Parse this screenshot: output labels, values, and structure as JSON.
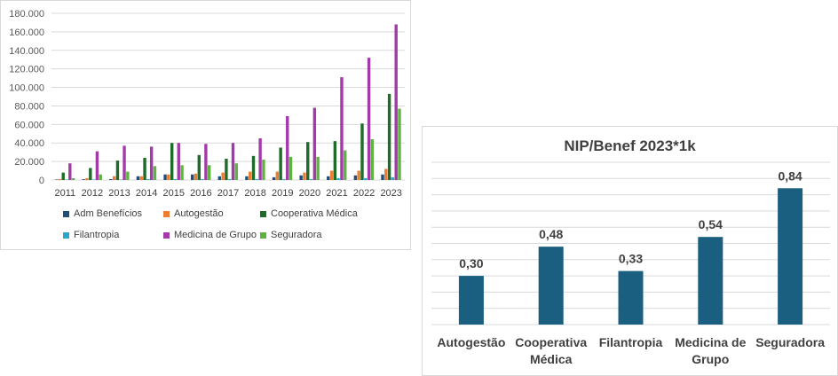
{
  "chart_data": [
    {
      "type": "bar",
      "title": "",
      "xlabel": "",
      "ylabel": "",
      "ylim": [
        0,
        180000
      ],
      "yticks": [
        "0",
        "20.000",
        "40.000",
        "60.000",
        "80.000",
        "100.000",
        "120.000",
        "140.000",
        "160.000",
        "180.000"
      ],
      "grid": true,
      "legend_position": "bottom",
      "categories": [
        "2011",
        "2012",
        "2013",
        "2014",
        "2015",
        "2016",
        "2017",
        "2018",
        "2019",
        "2020",
        "2021",
        "2022",
        "2023"
      ],
      "series": [
        {
          "name": "Adm Benefícios",
          "color": "#1f4e79",
          "values": [
            500,
            800,
            1000,
            4000,
            6000,
            6000,
            4000,
            4000,
            3000,
            5000,
            4000,
            5000,
            6000
          ]
        },
        {
          "name": "Autogestão",
          "color": "#ed7d31",
          "values": [
            1000,
            2000,
            4000,
            4000,
            6000,
            7000,
            8000,
            9000,
            9000,
            8000,
            10000,
            10000,
            12000
          ]
        },
        {
          "name": "Cooperativa Médica",
          "color": "#1e6b2a",
          "values": [
            8000,
            13000,
            21000,
            24000,
            40000,
            27000,
            23000,
            26000,
            35000,
            41000,
            42000,
            61000,
            93000
          ]
        },
        {
          "name": "Filantropia",
          "color": "#2aa8c9",
          "values": [
            500,
            500,
            500,
            1000,
            1000,
            1000,
            1000,
            1000,
            1000,
            1000,
            2000,
            2000,
            3000
          ]
        },
        {
          "name": "Medicina de Grupo",
          "color": "#a23aa8",
          "values": [
            18000,
            31000,
            37000,
            36000,
            40000,
            39000,
            40000,
            45000,
            69000,
            78000,
            111000,
            132000,
            168000
          ]
        },
        {
          "name": "Seguradora",
          "color": "#5fb342",
          "values": [
            2000,
            6000,
            9000,
            15000,
            16000,
            16000,
            18000,
            22000,
            25000,
            25000,
            32000,
            44000,
            77000
          ]
        }
      ]
    },
    {
      "type": "bar",
      "title": "NIP/Benef 2023*1k",
      "xlabel": "",
      "ylabel": "",
      "ylim": [
        0,
        1.0
      ],
      "grid": true,
      "color": "#1b5f80",
      "categories": [
        "Autogestão",
        "Cooperativa Médica",
        "Filantropia",
        "Medicina de Grupo",
        "Seguradora"
      ],
      "category_lines": [
        [
          "Autogestão"
        ],
        [
          "Cooperativa",
          "Médica"
        ],
        [
          "Filantropia"
        ],
        [
          "Medicina de",
          "Grupo"
        ],
        [
          "Seguradora"
        ]
      ],
      "values": [
        0.3,
        0.48,
        0.33,
        0.54,
        0.84
      ],
      "data_labels": [
        "0,30",
        "0,48",
        "0,33",
        "0,54",
        "0,84"
      ]
    }
  ]
}
